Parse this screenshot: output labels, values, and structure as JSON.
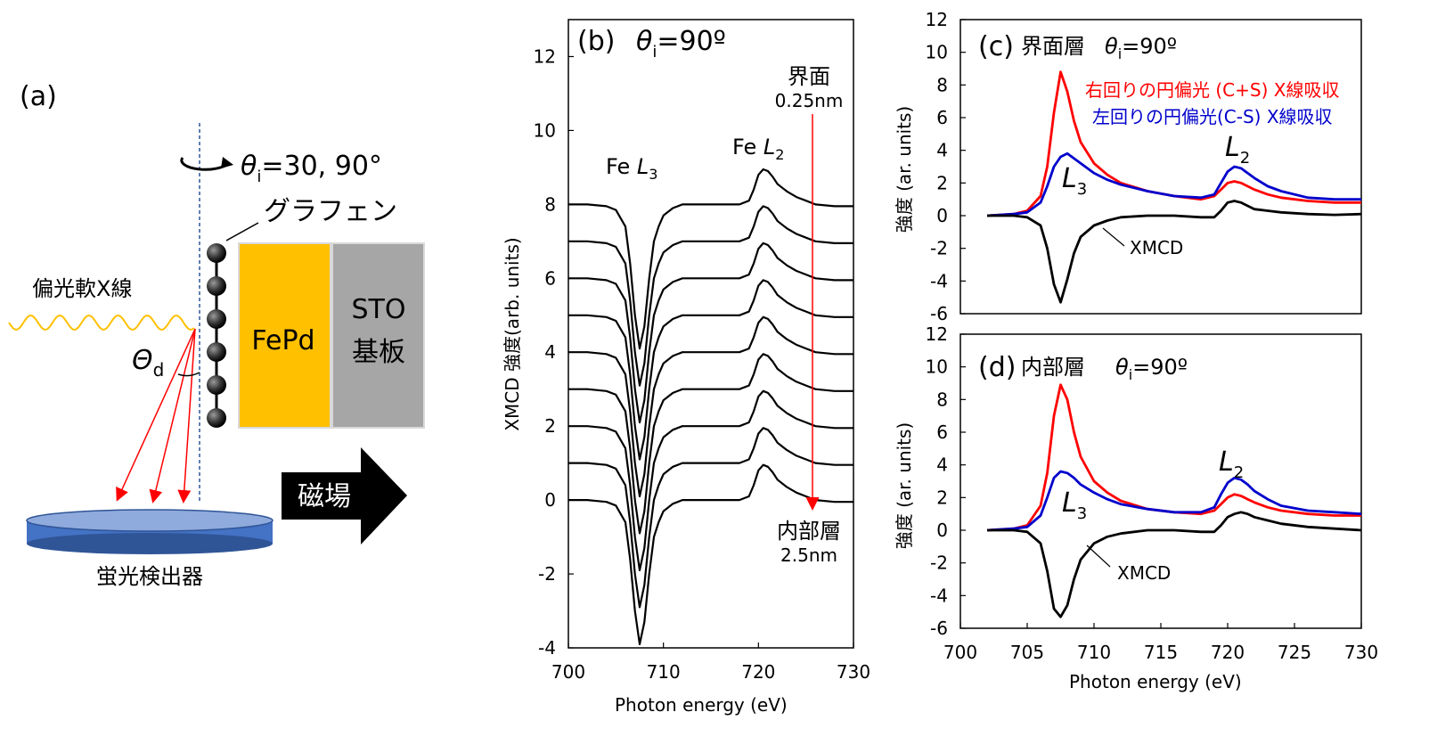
{
  "panel_a": {
    "label": "(a)",
    "theta_symbol": "θ",
    "theta_sub": "i",
    "theta_value": "=30, 90°",
    "graphene": "グラフェン",
    "xray": "偏光軟X線",
    "Theta_symbol": "Θ",
    "Theta_sub": "d",
    "fepd": "FePd",
    "sto_line1": "STO",
    "sto_line2": "基板",
    "field": "磁場",
    "detector": "蛍光検出器",
    "colors": {
      "fepd": "#FFC000",
      "sto": "#A6A6A6",
      "detector": "#4472C4",
      "xray": "#FFC000",
      "rays": "#FF0000"
    }
  },
  "chart_data": [
    {
      "id": "b",
      "type": "line",
      "panel_label": "(b)",
      "theta_symbol": "θ",
      "theta_sub": "i",
      "theta_value": "=90º",
      "xlabel": "Photon energy (eV)",
      "ylabel": "XMCD 強度(arb. units)",
      "xlim": [
        700,
        730
      ],
      "ylim": [
        -4,
        13
      ],
      "xticks": [
        700,
        710,
        720,
        730
      ],
      "yticks": [
        -4,
        -2,
        0,
        2,
        4,
        6,
        8,
        10,
        12
      ],
      "annotations": {
        "fe_l3_prefix": "Fe ",
        "fe_l3_italic": "L",
        "fe_l3_sub": "3",
        "fe_l2_prefix": "Fe ",
        "fe_l2_italic": "L",
        "fe_l2_sub": "2",
        "top_label": "界面",
        "top_value": "0.25nm",
        "bottom_label": "内部層",
        "bottom_value": "2.5nm"
      },
      "series_offsets": [
        0,
        1,
        2,
        3,
        4,
        5,
        6,
        7,
        8
      ],
      "base_curve": {
        "x": [
          700,
          702,
          704,
          705,
          706,
          706.5,
          707,
          707.5,
          708,
          708.5,
          709,
          709.5,
          710,
          711,
          712,
          714,
          716,
          718,
          719,
          719.5,
          720,
          720.5,
          721,
          721.5,
          722,
          722.5,
          723,
          724,
          725,
          726,
          728,
          730
        ],
        "y": [
          0,
          0,
          -0.05,
          -0.15,
          -0.6,
          -1.6,
          -3.0,
          -3.9,
          -3.3,
          -2.0,
          -1.0,
          -0.6,
          -0.3,
          -0.1,
          0.0,
          0.0,
          0.0,
          0.0,
          0.1,
          0.4,
          0.8,
          0.95,
          0.9,
          0.75,
          0.55,
          0.45,
          0.35,
          0.2,
          0.1,
          0.0,
          -0.05,
          -0.05
        ]
      },
      "colors": {
        "line": "#000000",
        "arrow": "#FF0000"
      }
    },
    {
      "id": "c",
      "type": "line",
      "panel_label": "(c)",
      "title": "界面層",
      "theta_symbol": "θ",
      "theta_sub": "i",
      "theta_value": "=90º",
      "ylabel": "強度 (ar. units)",
      "xlim": [
        700,
        730
      ],
      "ylim": [
        -6,
        12
      ],
      "yticks": [
        -6,
        -4,
        -2,
        0,
        2,
        4,
        6,
        8,
        10,
        12
      ],
      "legend": [
        "右回りの円偏光 (C+S) X線吸収",
        "左回りの円偏光(C-S) X線吸収"
      ],
      "annotations": {
        "l3_italic": "L",
        "l3_sub": "3",
        "l2_italic": "L",
        "l2_sub": "2",
        "xmcd": "XMCD"
      },
      "x": [
        702,
        704,
        705,
        706,
        706.5,
        707,
        707.5,
        708,
        708.5,
        709,
        710,
        711,
        712,
        714,
        716,
        718,
        719,
        719.5,
        720,
        720.5,
        721,
        721.5,
        722,
        723,
        724,
        726,
        728,
        730
      ],
      "series": [
        {
          "name": "右回りの円偏光 (C+S) X線吸収",
          "color": "#FF0000",
          "values": [
            0,
            0.1,
            0.3,
            1.2,
            3.0,
            6.3,
            8.8,
            7.6,
            5.8,
            4.5,
            3.2,
            2.5,
            2.0,
            1.5,
            1.2,
            1.0,
            1.2,
            1.6,
            2.0,
            2.1,
            2.0,
            1.8,
            1.6,
            1.3,
            1.1,
            0.9,
            0.8,
            0.8
          ]
        },
        {
          "name": "左回りの円偏光(C-S) X線吸収",
          "color": "#0000CC",
          "values": [
            0,
            0.1,
            0.2,
            0.8,
            1.8,
            3.0,
            3.6,
            3.8,
            3.5,
            3.2,
            2.6,
            2.2,
            1.9,
            1.5,
            1.2,
            1.1,
            1.3,
            2.0,
            2.7,
            3.0,
            2.9,
            2.6,
            2.3,
            1.8,
            1.5,
            1.1,
            1.0,
            1.0
          ]
        },
        {
          "name": "XMCD",
          "color": "#000000",
          "values": [
            0,
            0,
            -0.1,
            -0.6,
            -2.0,
            -4.2,
            -5.3,
            -3.9,
            -2.3,
            -1.3,
            -0.6,
            -0.3,
            -0.1,
            0,
            0,
            -0.1,
            -0.1,
            0.3,
            0.8,
            0.9,
            0.8,
            0.6,
            0.4,
            0.3,
            0.2,
            0.1,
            0.05,
            0.1
          ]
        }
      ]
    },
    {
      "id": "d",
      "type": "line",
      "panel_label": "(d)",
      "title": "内部層",
      "theta_symbol": "θ",
      "theta_sub": "i",
      "theta_value": "=90º",
      "xlabel": "Photon energy (eV)",
      "ylabel": "強度 (ar. units)",
      "xlim": [
        700,
        730
      ],
      "ylim": [
        -6,
        12
      ],
      "xticks": [
        700,
        705,
        710,
        715,
        720,
        725,
        730
      ],
      "yticks": [
        -6,
        -4,
        -2,
        0,
        2,
        4,
        6,
        8,
        10,
        12
      ],
      "annotations": {
        "l3_italic": "L",
        "l3_sub": "3",
        "l2_italic": "L",
        "l2_sub": "2",
        "xmcd": "XMCD"
      },
      "x": [
        702,
        704,
        705,
        706,
        706.5,
        707,
        707.5,
        708,
        708.5,
        709,
        710,
        711,
        712,
        714,
        716,
        718,
        719,
        719.5,
        720,
        720.5,
        721,
        721.5,
        722,
        723,
        724,
        726,
        728,
        730
      ],
      "series": [
        {
          "name": "右回りの円偏光 (C+S) X線吸収",
          "color": "#FF0000",
          "values": [
            0,
            0.1,
            0.3,
            1.5,
            3.5,
            7.0,
            8.9,
            8.0,
            6.0,
            4.5,
            3.0,
            2.3,
            1.8,
            1.3,
            1.1,
            1.0,
            1.2,
            1.6,
            2.0,
            2.2,
            2.1,
            1.9,
            1.7,
            1.4,
            1.2,
            1.0,
            0.9,
            0.9
          ]
        },
        {
          "name": "左回りの円偏光(C-S) X線吸収",
          "color": "#0000CC",
          "values": [
            0,
            0.1,
            0.2,
            0.9,
            2.0,
            3.2,
            3.6,
            3.5,
            3.2,
            2.8,
            2.3,
            1.9,
            1.6,
            1.3,
            1.1,
            1.1,
            1.4,
            2.2,
            2.9,
            3.2,
            3.1,
            2.8,
            2.4,
            1.9,
            1.5,
            1.2,
            1.1,
            1.0
          ]
        },
        {
          "name": "XMCD",
          "color": "#000000",
          "values": [
            0,
            0,
            -0.1,
            -0.8,
            -2.5,
            -4.8,
            -5.3,
            -4.6,
            -3.0,
            -1.8,
            -0.8,
            -0.4,
            -0.2,
            0,
            0,
            -0.1,
            -0.1,
            0.3,
            0.8,
            1.0,
            1.1,
            1.0,
            0.8,
            0.6,
            0.4,
            0.2,
            0.1,
            0.0
          ]
        }
      ]
    }
  ]
}
